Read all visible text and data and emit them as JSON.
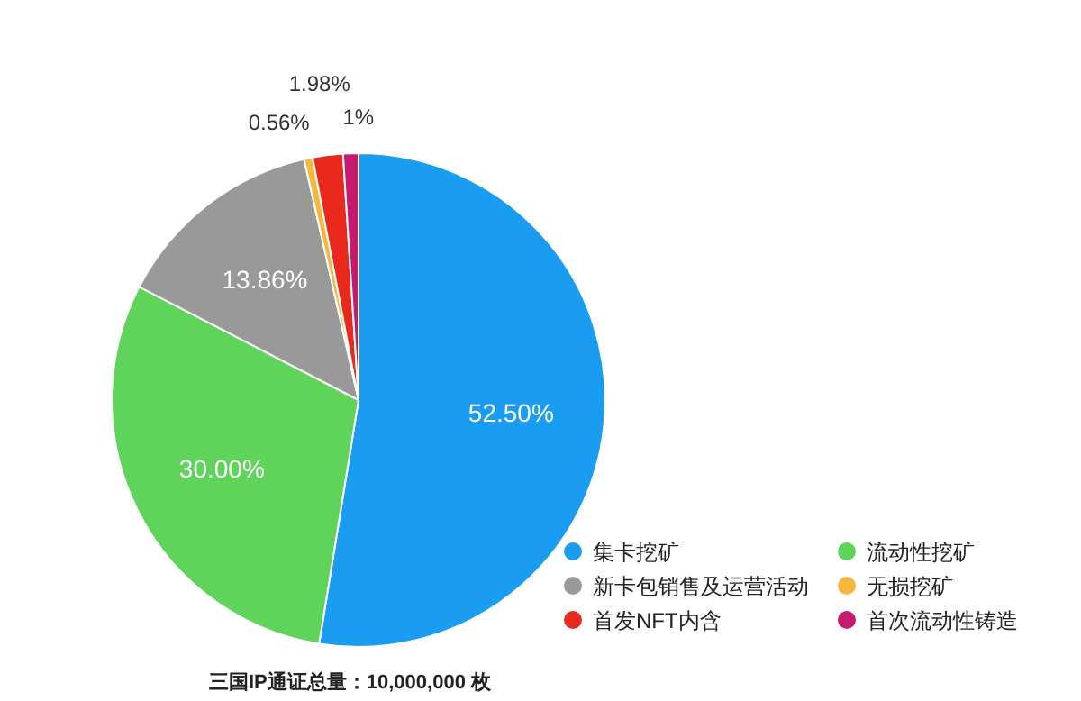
{
  "chart_data": {
    "type": "pie",
    "categories": [
      "集卡挖矿",
      "流动性挖矿",
      "新卡包销售及运营活动",
      "无损挖矿",
      "首发NFT内含",
      "首次流动性铸造"
    ],
    "values": [
      52.5,
      30,
      13.86,
      0.56,
      1.98,
      1
    ],
    "value_labels": [
      "52.50%",
      "30.00%",
      "13.86%",
      "0.56%",
      "1.98%",
      "1%"
    ],
    "colors": [
      "#1a9cf0",
      "#5fd35a",
      "#999999",
      "#f6b73c",
      "#e8291c",
      "#c71a6f"
    ],
    "legend": "bottom right",
    "annotations": [
      "三国IP通证总量：10,000,000 枚"
    ]
  }
}
